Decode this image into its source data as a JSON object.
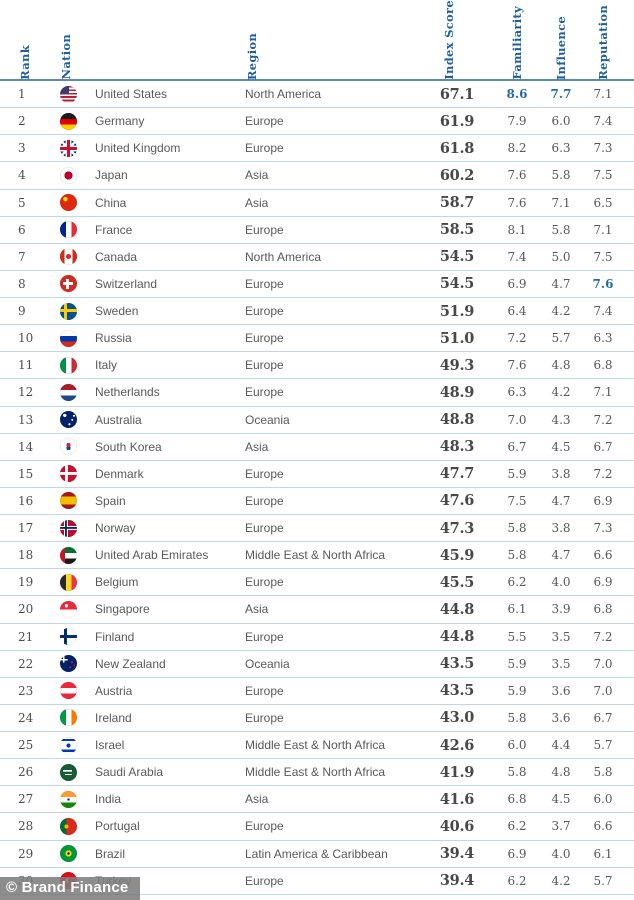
{
  "chart_data": {
    "type": "table",
    "columns": [
      "Rank",
      "Nation",
      "Region",
      "Index Score",
      "Familiarity",
      "Influence",
      "Reputation"
    ],
    "rows": [
      {
        "rank": "1",
        "flag": "us",
        "nation": "United States",
        "region": "North America",
        "index_score": "67.1",
        "familiarity": "8.6",
        "influence": "7.7",
        "reputation": "7.1",
        "highlight": [
          "familiarity",
          "influence"
        ]
      },
      {
        "rank": "2",
        "flag": "de",
        "nation": "Germany",
        "region": "Europe",
        "index_score": "61.9",
        "familiarity": "7.9",
        "influence": "6.0",
        "reputation": "7.4",
        "highlight": []
      },
      {
        "rank": "3",
        "flag": "gb",
        "nation": "United Kingdom",
        "region": "Europe",
        "index_score": "61.8",
        "familiarity": "8.2",
        "influence": "6.3",
        "reputation": "7.3",
        "highlight": []
      },
      {
        "rank": "4",
        "flag": "jp",
        "nation": "Japan",
        "region": "Asia",
        "index_score": "60.2",
        "familiarity": "7.6",
        "influence": "5.8",
        "reputation": "7.5",
        "highlight": []
      },
      {
        "rank": "5",
        "flag": "cn",
        "nation": "China",
        "region": "Asia",
        "index_score": "58.7",
        "familiarity": "7.6",
        "influence": "7.1",
        "reputation": "6.5",
        "highlight": []
      },
      {
        "rank": "6",
        "flag": "fr",
        "nation": "France",
        "region": "Europe",
        "index_score": "58.5",
        "familiarity": "8.1",
        "influence": "5.8",
        "reputation": "7.1",
        "highlight": []
      },
      {
        "rank": "7",
        "flag": "ca",
        "nation": "Canada",
        "region": "North America",
        "index_score": "54.5",
        "familiarity": "7.4",
        "influence": "5.0",
        "reputation": "7.5",
        "highlight": []
      },
      {
        "rank": "8",
        "flag": "ch",
        "nation": "Switzerland",
        "region": "Europe",
        "index_score": "54.5",
        "familiarity": "6.9",
        "influence": "4.7",
        "reputation": "7.6",
        "highlight": [
          "reputation"
        ]
      },
      {
        "rank": "9",
        "flag": "se",
        "nation": "Sweden",
        "region": "Europe",
        "index_score": "51.9",
        "familiarity": "6.4",
        "influence": "4.2",
        "reputation": "7.4",
        "highlight": []
      },
      {
        "rank": "10",
        "flag": "ru",
        "nation": "Russia",
        "region": "Europe",
        "index_score": "51.0",
        "familiarity": "7.2",
        "influence": "5.7",
        "reputation": "6.3",
        "highlight": []
      },
      {
        "rank": "11",
        "flag": "it",
        "nation": "Italy",
        "region": "Europe",
        "index_score": "49.3",
        "familiarity": "7.6",
        "influence": "4.8",
        "reputation": "6.8",
        "highlight": []
      },
      {
        "rank": "12",
        "flag": "nl",
        "nation": "Netherlands",
        "region": "Europe",
        "index_score": "48.9",
        "familiarity": "6.3",
        "influence": "4.2",
        "reputation": "7.1",
        "highlight": []
      },
      {
        "rank": "13",
        "flag": "au",
        "nation": "Australia",
        "region": "Oceania",
        "index_score": "48.8",
        "familiarity": "7.0",
        "influence": "4.3",
        "reputation": "7.2",
        "highlight": []
      },
      {
        "rank": "14",
        "flag": "kr",
        "nation": "South Korea",
        "region": "Asia",
        "index_score": "48.3",
        "familiarity": "6.7",
        "influence": "4.5",
        "reputation": "6.7",
        "highlight": []
      },
      {
        "rank": "15",
        "flag": "dk",
        "nation": "Denmark",
        "region": "Europe",
        "index_score": "47.7",
        "familiarity": "5.9",
        "influence": "3.8",
        "reputation": "7.2",
        "highlight": []
      },
      {
        "rank": "16",
        "flag": "es",
        "nation": "Spain",
        "region": "Europe",
        "index_score": "47.6",
        "familiarity": "7.5",
        "influence": "4.7",
        "reputation": "6.9",
        "highlight": []
      },
      {
        "rank": "17",
        "flag": "no",
        "nation": "Norway",
        "region": "Europe",
        "index_score": "47.3",
        "familiarity": "5.8",
        "influence": "3.8",
        "reputation": "7.3",
        "highlight": []
      },
      {
        "rank": "18",
        "flag": "ae",
        "nation": "United Arab Emirates",
        "region": "Middle East & North Africa",
        "index_score": "45.9",
        "familiarity": "5.8",
        "influence": "4.7",
        "reputation": "6.6",
        "highlight": []
      },
      {
        "rank": "19",
        "flag": "be",
        "nation": "Belgium",
        "region": "Europe",
        "index_score": "45.5",
        "familiarity": "6.2",
        "influence": "4.0",
        "reputation": "6.9",
        "highlight": []
      },
      {
        "rank": "20",
        "flag": "sg",
        "nation": "Singapore",
        "region": "Asia",
        "index_score": "44.8",
        "familiarity": "6.1",
        "influence": "3.9",
        "reputation": "6.8",
        "highlight": []
      },
      {
        "rank": "21",
        "flag": "fi",
        "nation": "Finland",
        "region": "Europe",
        "index_score": "44.8",
        "familiarity": "5.5",
        "influence": "3.5",
        "reputation": "7.2",
        "highlight": []
      },
      {
        "rank": "22",
        "flag": "nz",
        "nation": "New Zealand",
        "region": "Oceania",
        "index_score": "43.5",
        "familiarity": "5.9",
        "influence": "3.5",
        "reputation": "7.0",
        "highlight": []
      },
      {
        "rank": "23",
        "flag": "at",
        "nation": "Austria",
        "region": "Europe",
        "index_score": "43.5",
        "familiarity": "5.9",
        "influence": "3.6",
        "reputation": "7.0",
        "highlight": []
      },
      {
        "rank": "24",
        "flag": "ie",
        "nation": "Ireland",
        "region": "Europe",
        "index_score": "43.0",
        "familiarity": "5.8",
        "influence": "3.6",
        "reputation": "6.7",
        "highlight": []
      },
      {
        "rank": "25",
        "flag": "il",
        "nation": "Israel",
        "region": "Middle East & North Africa",
        "index_score": "42.6",
        "familiarity": "6.0",
        "influence": "4.4",
        "reputation": "5.7",
        "highlight": []
      },
      {
        "rank": "26",
        "flag": "sa",
        "nation": "Saudi Arabia",
        "region": "Middle East & North Africa",
        "index_score": "41.9",
        "familiarity": "5.8",
        "influence": "4.8",
        "reputation": "5.8",
        "highlight": []
      },
      {
        "rank": "27",
        "flag": "in",
        "nation": "India",
        "region": "Asia",
        "index_score": "41.6",
        "familiarity": "6.8",
        "influence": "4.5",
        "reputation": "6.0",
        "highlight": []
      },
      {
        "rank": "28",
        "flag": "pt",
        "nation": "Portugal",
        "region": "Europe",
        "index_score": "40.6",
        "familiarity": "6.2",
        "influence": "3.7",
        "reputation": "6.6",
        "highlight": []
      },
      {
        "rank": "29",
        "flag": "br",
        "nation": "Brazil",
        "region": "Latin America & Caribbean",
        "index_score": "39.4",
        "familiarity": "6.9",
        "influence": "4.0",
        "reputation": "6.1",
        "highlight": []
      },
      {
        "rank": "30",
        "flag": "tr",
        "nation": "Turkey",
        "region": "Europe",
        "index_score": "39.4",
        "familiarity": "6.2",
        "influence": "4.2",
        "reputation": "5.7",
        "highlight": []
      }
    ]
  },
  "footer": {
    "credit": "© Brand Finance"
  },
  "colors": {
    "header_text": "#1f5fa0",
    "highlight_blue": "#2569ac",
    "header_line": "#5a8ab0",
    "row_line": "#bdd7ee",
    "index_text": "#484848",
    "body_text": "#595959",
    "watermark_bg": "#7c7c7c"
  }
}
